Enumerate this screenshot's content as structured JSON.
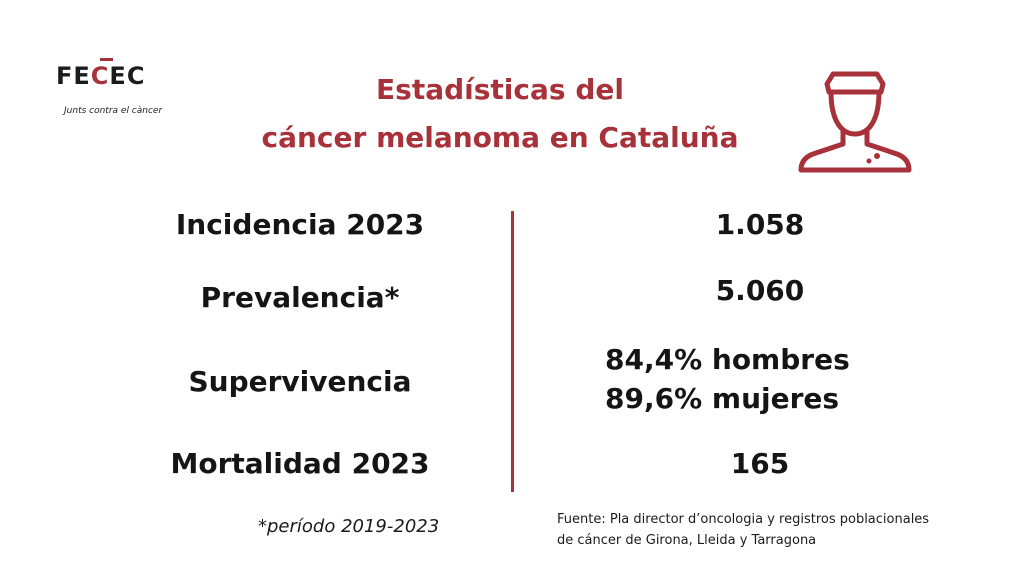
{
  "logo": {
    "prefix": "FE",
    "middle": "C",
    "suffix": "EC",
    "tagline": "Junts contra el càncer"
  },
  "title": {
    "line1": "Estadísticas del",
    "line2": "cáncer melanoma en Cataluña"
  },
  "icon": "person-with-skin-spot-icon",
  "rows": [
    {
      "label": "Incidencia 2023",
      "value": "1.058"
    },
    {
      "label": "Prevalencia*",
      "value": "5.060"
    },
    {
      "label": "Supervivencia",
      "value_lines": [
        "84,4% hombres",
        "89,6% mujeres"
      ]
    },
    {
      "label": "Mortalidad 2023",
      "value": "165"
    }
  ],
  "footnote": "*período 2019-2023",
  "source": {
    "line1": "Fuente: Pla director d’oncologia y registros poblacionales",
    "line2": "de cáncer de Girona, Lleida y Tarragona"
  },
  "colors": {
    "accent": "#a8323a",
    "text": "#151515",
    "background": "#ffffff"
  }
}
